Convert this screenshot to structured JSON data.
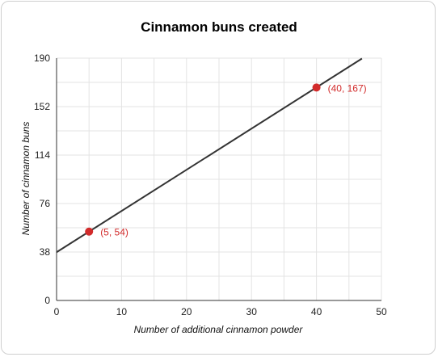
{
  "chart_data": {
    "type": "line",
    "title": "Cinnamon buns created",
    "xlabel": "Number of additional cinnamon powder",
    "ylabel": "Number of cinnamon buns",
    "xlim": [
      0,
      50
    ],
    "ylim": [
      0,
      190
    ],
    "xticks": [
      "0",
      "10",
      "20",
      "30",
      "40",
      "50"
    ],
    "yticks": [
      "0",
      "38",
      "76",
      "114",
      "152",
      "190"
    ],
    "grid": true,
    "line": {
      "x": [
        0,
        47
      ],
      "y": [
        37.857,
        189.67
      ]
    },
    "points": [
      {
        "x": 5,
        "y": 54,
        "label": "(5, 54)"
      },
      {
        "x": 40,
        "y": 167,
        "label": "(40, 167)"
      }
    ],
    "colors": {
      "line": "#333333",
      "points": "#d22b2b",
      "grid": "#e3e3e3"
    }
  }
}
